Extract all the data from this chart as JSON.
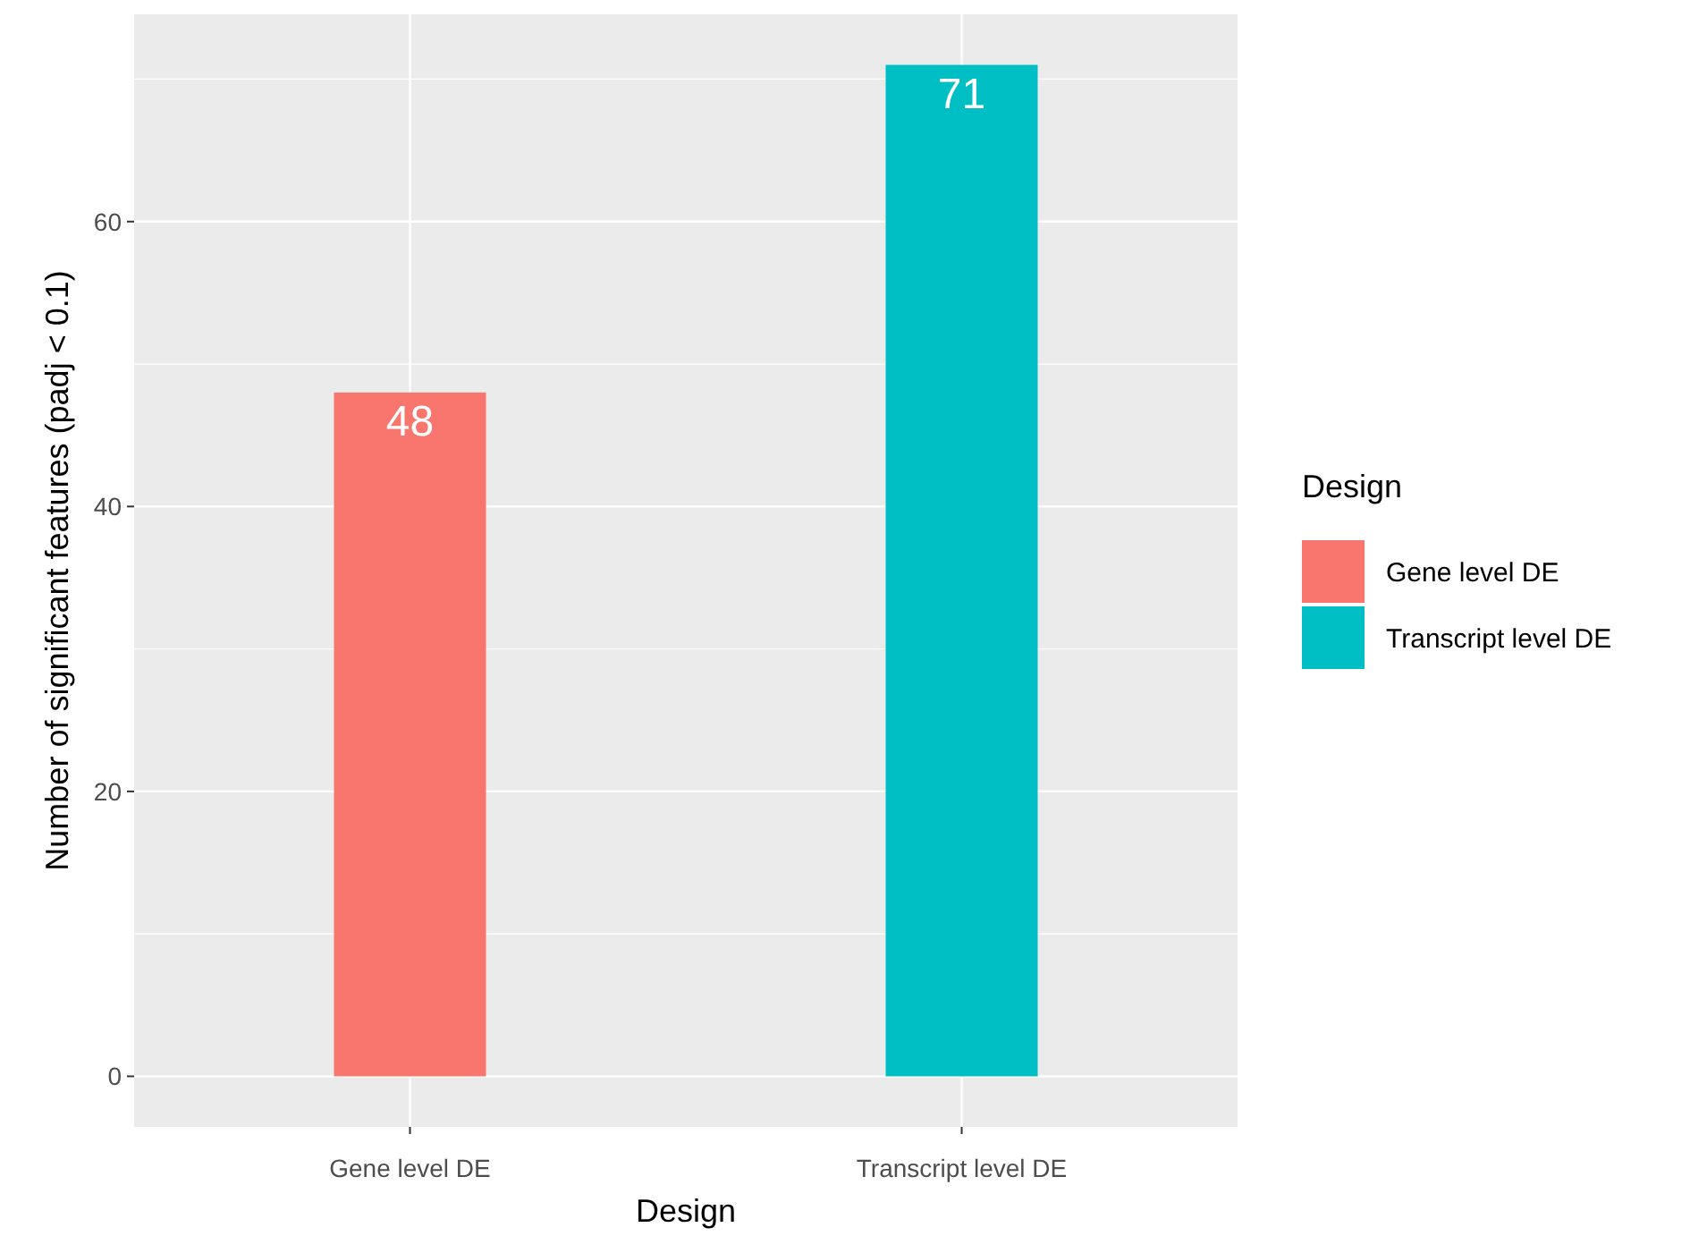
{
  "chart_data": {
    "type": "bar",
    "xlabel": "Design",
    "ylabel": "Number of significant features (padj < 0.1)",
    "legend_title": "Design",
    "categories": [
      "Gene level DE",
      "Transcript level DE"
    ],
    "series": [
      {
        "name": "Gene level DE",
        "color": "#f8766d",
        "values": [
          48,
          null
        ]
      },
      {
        "name": "Transcript level DE",
        "color": "#00bfc4",
        "values": [
          null,
          71
        ]
      }
    ],
    "ylim": [
      -3.55,
      74.55
    ],
    "yticks": [
      0,
      {
        "value": 10,
        "label": null
      },
      20,
      {
        "value": 30,
        "label": null
      },
      40,
      {
        "value": 50,
        "label": null
      },
      60,
      {
        "value": 70,
        "label": null
      }
    ],
    "grid": true,
    "data_labels": true,
    "legend": "right"
  }
}
